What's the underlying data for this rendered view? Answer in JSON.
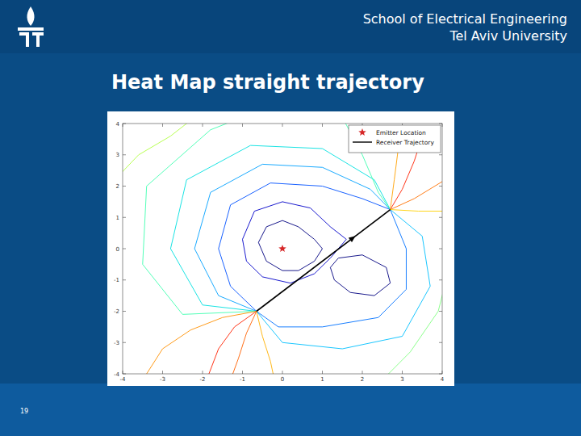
{
  "header": {
    "school": "School of Electrical Engineering",
    "university": "Tel Aviv University"
  },
  "page_number": 19,
  "chart_data": {
    "type": "contour",
    "title": "Heat Map straight trajectory",
    "xlim": [
      -4,
      4
    ],
    "ylim": [
      -4,
      4
    ],
    "xticks": [
      -4,
      -3,
      -2,
      -1,
      0,
      1,
      2,
      3,
      4
    ],
    "yticks": [
      -4,
      -3,
      -2,
      -1,
      0,
      1,
      2,
      3,
      4
    ],
    "grid": false,
    "legend": "upper right",
    "series": [
      {
        "name": "Emitter Location",
        "type": "scatter",
        "marker": "star",
        "color": "#d62728",
        "x": [
          0
        ],
        "values": [
          0
        ]
      },
      {
        "name": "Receiver Trajectory",
        "type": "line",
        "color": "#000000",
        "x": [
          -0.65,
          2.7
        ],
        "values": [
          -2.0,
          1.25
        ]
      }
    ],
    "contours": [
      {
        "color": "#00007f",
        "x": [
          -0.6,
          -0.4,
          0,
          0.4,
          0.8,
          1,
          0.8,
          0.4,
          0,
          -0.4,
          -0.6
        ],
        "y": [
          0.2,
          0.7,
          0.9,
          0.7,
          0.3,
          0,
          -0.4,
          -0.7,
          -0.7,
          -0.4,
          0.2
        ]
      },
      {
        "color": "#0000c8",
        "x": [
          -1,
          -0.7,
          0,
          0.7,
          1.2,
          1.6,
          1.2,
          0.8,
          0.2,
          -0.5,
          -0.9,
          -1
        ],
        "y": [
          0.3,
          1.2,
          1.5,
          1.3,
          0.7,
          0.3,
          -0.3,
          -0.8,
          -1.1,
          -0.9,
          -0.4,
          0.3
        ]
      },
      {
        "color": "#00007f",
        "x": [
          1.4,
          2.0,
          2.6,
          2.7,
          2.3,
          1.7,
          1.3,
          1.2,
          1.4
        ],
        "y": [
          -0.3,
          -0.2,
          -0.6,
          -1.1,
          -1.5,
          -1.4,
          -1.0,
          -0.6,
          -0.3
        ]
      },
      {
        "color": "#0050ff",
        "x": [
          -0.65,
          -1.3,
          -1.6,
          -1.3,
          -0.3,
          1,
          2,
          2.7
        ],
        "y": [
          -2,
          -1.2,
          0,
          1.4,
          2.1,
          2,
          1.6,
          1.25
        ]
      },
      {
        "color": "#00a0ff",
        "x": [
          -0.65,
          -1.6,
          -2.2,
          -1.8,
          -0.5,
          1,
          2.2,
          2.7
        ],
        "y": [
          -2,
          -1.5,
          0,
          1.8,
          2.7,
          2.6,
          1.9,
          1.25
        ]
      },
      {
        "color": "#00e0e0",
        "x": [
          -0.65,
          -2,
          -2.8,
          -2.4,
          -0.8,
          1,
          2.3,
          2.7
        ],
        "y": [
          -2,
          -1.8,
          0,
          2.2,
          3.3,
          3.2,
          2.2,
          1.25
        ]
      },
      {
        "color": "#40ffb0",
        "x": [
          -0.65,
          -2.5,
          -3.5,
          -3.4,
          -1.8,
          -1
        ],
        "y": [
          -2,
          -2.1,
          -0.5,
          2,
          3.8,
          4.2
        ]
      },
      {
        "color": "#40ffb0",
        "x": [
          2.7,
          2.4,
          2,
          1.5
        ],
        "y": [
          1.25,
          1.8,
          3,
          4.2
        ]
      },
      {
        "color": "#0070ff",
        "x": [
          -0.65,
          -0.1,
          1,
          2.4,
          3.1,
          3.1,
          2.7
        ],
        "y": [
          -2,
          -2.5,
          -2.5,
          -2.2,
          -1.3,
          0,
          1.25
        ]
      },
      {
        "color": "#00c0ff",
        "x": [
          -0.65,
          0,
          1.5,
          3,
          3.7,
          3.5,
          2.7
        ],
        "y": [
          -2,
          -3,
          -3.2,
          -2.8,
          -1.2,
          0.4,
          1.25
        ]
      },
      {
        "color": "#ff2000",
        "x": [
          -0.65,
          -1.2,
          -1.6,
          -1.9
        ],
        "y": [
          -2,
          -2.5,
          -3.2,
          -4.2
        ]
      },
      {
        "color": "#ff6000",
        "x": [
          -0.65,
          -0.9,
          -1.1,
          -1.3
        ],
        "y": [
          -2,
          -2.7,
          -3.5,
          -4.2
        ]
      },
      {
        "color": "#ffb000",
        "x": [
          -0.65,
          -0.5,
          -0.3,
          -0.2
        ],
        "y": [
          -2,
          -2.8,
          -3.6,
          -4.2
        ]
      },
      {
        "color": "#ff9000",
        "x": [
          -0.65,
          -1.5,
          -2.3,
          -3,
          -3.5
        ],
        "y": [
          -2,
          -2.2,
          -2.6,
          -3.2,
          -4.2
        ]
      },
      {
        "color": "#ff2000",
        "x": [
          2.7,
          3,
          3.3,
          3.4
        ],
        "y": [
          1.25,
          1.9,
          2.8,
          3.2
        ]
      },
      {
        "color": "#ff7000",
        "x": [
          2.7,
          3.3,
          4.2
        ],
        "y": [
          1.25,
          1.6,
          2.3
        ]
      },
      {
        "color": "#ffa000",
        "x": [
          2.7,
          2.8,
          2.9
        ],
        "y": [
          1.25,
          2.2,
          3.2
        ]
      },
      {
        "color": "#ffd000",
        "x": [
          2.7,
          3.4,
          4.2
        ],
        "y": [
          1.25,
          1.2,
          1.2
        ]
      },
      {
        "color": "#b0ff40",
        "x": [
          -4.2,
          -3.6,
          -2.8,
          -2.2
        ],
        "y": [
          2.2,
          3,
          3.6,
          4.2
        ]
      },
      {
        "color": "#80ff80",
        "x": [
          4.2,
          3.9,
          3.2,
          2.5
        ],
        "y": [
          -0.5,
          -2,
          -3.3,
          -4.2
        ]
      }
    ]
  }
}
